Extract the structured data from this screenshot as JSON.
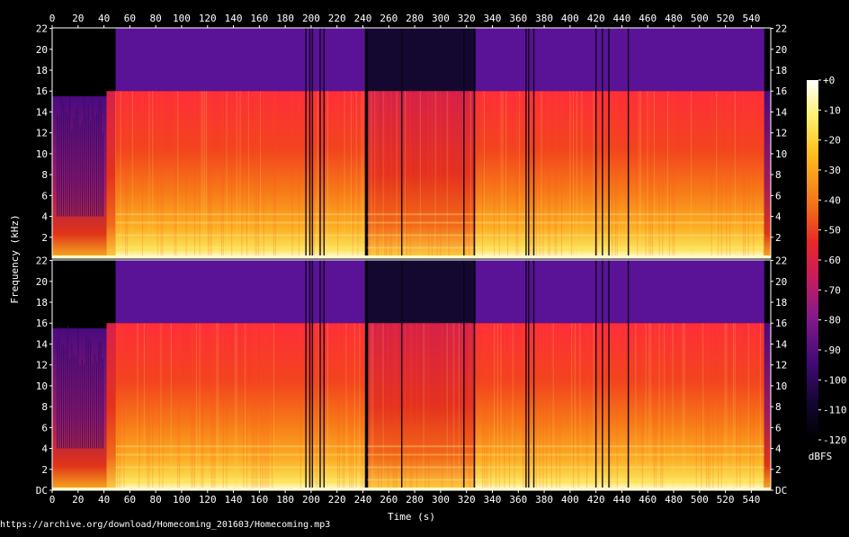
{
  "chart_data": {
    "type": "heatmap",
    "subtype": "spectrogram",
    "channels": 2,
    "xlabel": "Time (s)",
    "ylabel": "Frequency (kHz)",
    "x_ticks": [
      "0",
      "20",
      "40",
      "60",
      "80",
      "100",
      "120",
      "140",
      "160",
      "180",
      "200",
      "220",
      "240",
      "260",
      "280",
      "300",
      "320",
      "340",
      "360",
      "380",
      "400",
      "420",
      "440",
      "460",
      "480",
      "500",
      "520",
      "540"
    ],
    "x_tick_values": [
      0,
      20,
      40,
      60,
      80,
      100,
      120,
      140,
      160,
      180,
      200,
      220,
      240,
      260,
      280,
      300,
      320,
      340,
      360,
      380,
      400,
      420,
      440,
      460,
      480,
      500,
      520,
      540
    ],
    "xlim": [
      0,
      555
    ],
    "y_ticks_top": [
      "22",
      "20",
      "18",
      "16",
      "14",
      "12",
      "10",
      "8",
      "6",
      "4",
      "2"
    ],
    "y_ticks_bottom": [
      "22",
      "20",
      "18",
      "16",
      "14",
      "12",
      "10",
      "8",
      "6",
      "4",
      "2",
      "DC"
    ],
    "y_tick_values": [
      22,
      20,
      18,
      16,
      14,
      12,
      10,
      8,
      6,
      4,
      2,
      0
    ],
    "ylim_khz": [
      0,
      22.05
    ],
    "lowpass_cutoff_khz": 16,
    "colorbar": {
      "label": "dBFS",
      "ticks": [
        "+0",
        "-10",
        "-20",
        "-30",
        "-40",
        "-50",
        "-60",
        "-70",
        "-80",
        "-90",
        "-100",
        "-110",
        "-120"
      ],
      "tick_values": [
        0,
        -10,
        -20,
        -30,
        -40,
        -50,
        -60,
        -70,
        -80,
        -90,
        -100,
        -110,
        -120
      ],
      "range": [
        -120,
        0
      ]
    },
    "segments": [
      {
        "start": 0,
        "end": 42,
        "level": "quiet"
      },
      {
        "start": 42,
        "end": 49,
        "level": "transition"
      },
      {
        "start": 49,
        "end": 242,
        "level": "loud"
      },
      {
        "start": 242,
        "end": 244,
        "level": "silence"
      },
      {
        "start": 244,
        "end": 327,
        "level": "medium"
      },
      {
        "start": 327,
        "end": 550,
        "level": "loud"
      },
      {
        "start": 550,
        "end": 555,
        "level": "fade"
      }
    ],
    "gaps_s": [
      196,
      199,
      201,
      207,
      210,
      242,
      243,
      270,
      318,
      326,
      366,
      368,
      372,
      420,
      425,
      430,
      445
    ]
  },
  "footer": {
    "source_url": "https://archive.org/download/Homecoming_201603/Homecoming.mp3"
  },
  "colors": {
    "background": "#000000",
    "axis": "#ffffff",
    "palette": [
      "#000000",
      "#1a0840",
      "#440a7a",
      "#8a1a8a",
      "#c81c5c",
      "#e82828",
      "#f06018",
      "#f8a010",
      "#fde040",
      "#ffffff"
    ]
  }
}
